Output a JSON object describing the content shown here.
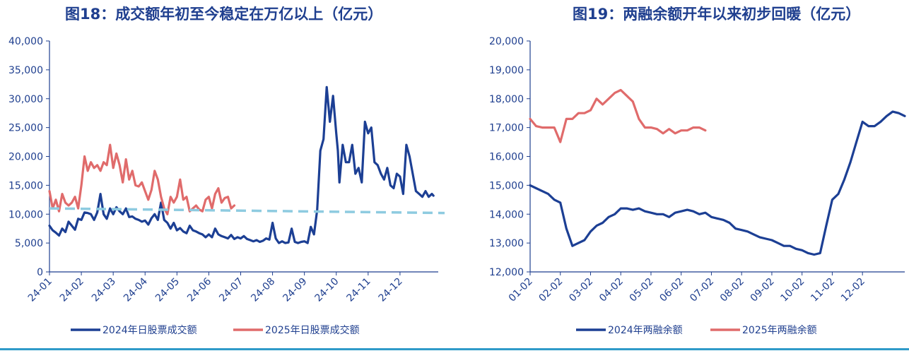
{
  "chart_data": [
    {
      "type": "line",
      "title": "图18：成交额年初至今稳定在万亿以上（亿元）",
      "xlabel": "",
      "ylabel": "",
      "ylim": [
        0,
        40000
      ],
      "yticks": [
        "0",
        "5,000",
        "10,000",
        "15,000",
        "20,000",
        "25,000",
        "30,000",
        "35,000",
        "40,000"
      ],
      "yticks_values": [
        0,
        5000,
        10000,
        15000,
        20000,
        25000,
        30000,
        35000,
        40000
      ],
      "xticks": [
        "24-01",
        "24-02",
        "24-03",
        "24-04",
        "24-05",
        "24-06",
        "24-07",
        "24-08",
        "24-09",
        "24-10",
        "24-11",
        "24-12"
      ],
      "xlim": [
        0,
        12.2
      ],
      "legend_position": "bottom",
      "series": [
        {
          "name": "2024年日股票成交额",
          "color": "#1c3f94",
          "x": [
            0.0,
            0.1,
            0.2,
            0.3,
            0.4,
            0.5,
            0.6,
            0.7,
            0.8,
            0.9,
            1.0,
            1.1,
            1.2,
            1.3,
            1.4,
            1.5,
            1.6,
            1.7,
            1.8,
            1.9,
            2.0,
            2.1,
            2.2,
            2.3,
            2.4,
            2.5,
            2.6,
            2.7,
            2.8,
            2.9,
            3.0,
            3.1,
            3.2,
            3.3,
            3.4,
            3.5,
            3.6,
            3.7,
            3.8,
            3.9,
            4.0,
            4.1,
            4.2,
            4.3,
            4.4,
            4.5,
            4.6,
            4.7,
            4.8,
            4.9,
            5.0,
            5.1,
            5.2,
            5.3,
            5.4,
            5.5,
            5.6,
            5.7,
            5.8,
            5.9,
            6.0,
            6.1,
            6.2,
            6.3,
            6.4,
            6.5,
            6.6,
            6.7,
            6.8,
            6.9,
            7.0,
            7.1,
            7.2,
            7.3,
            7.4,
            7.5,
            7.6,
            7.7,
            7.8,
            7.9,
            8.0,
            8.1,
            8.2,
            8.3,
            8.4,
            8.5,
            8.6,
            8.7,
            8.8,
            8.9,
            9.0,
            9.05,
            9.1,
            9.2,
            9.3,
            9.4,
            9.5,
            9.6,
            9.7,
            9.8,
            9.9,
            10.0,
            10.1,
            10.2,
            10.3,
            10.4,
            10.5,
            10.6,
            10.7,
            10.8,
            10.9,
            11.0,
            11.1,
            11.2,
            11.3,
            11.4,
            11.5,
            11.6,
            11.7,
            11.8,
            11.9,
            12.0,
            12.05
          ],
          "values": [
            8000,
            7200,
            6800,
            6300,
            7500,
            6900,
            8700,
            8000,
            7300,
            9200,
            9000,
            10300,
            10200,
            10000,
            9000,
            10300,
            13500,
            10000,
            9200,
            11000,
            10000,
            11200,
            10500,
            10000,
            11000,
            9500,
            9600,
            9200,
            9000,
            8700,
            8900,
            8200,
            9300,
            10000,
            9000,
            12000,
            9000,
            8500,
            7500,
            8500,
            7200,
            7600,
            7000,
            6700,
            8000,
            7200,
            7000,
            6700,
            6500,
            6000,
            6500,
            6000,
            7500,
            6500,
            6200,
            6000,
            5800,
            6400,
            5700,
            6000,
            5800,
            6200,
            5700,
            5500,
            5300,
            5500,
            5200,
            5400,
            5800,
            5600,
            8500,
            5800,
            5000,
            5300,
            5000,
            5100,
            7500,
            5200,
            5000,
            5200,
            5300,
            5000,
            7800,
            6500,
            10700,
            21000,
            23000,
            32000,
            26000,
            30500,
            24000,
            21000,
            15500,
            22000,
            19000,
            19000,
            22000,
            17000,
            18000,
            15500,
            26000,
            24000,
            25000,
            19000,
            18500,
            17000,
            16000,
            18000,
            15000,
            14500,
            17000,
            16500,
            13500,
            22000,
            20000,
            17000,
            14000,
            13500,
            13000,
            14000,
            13000,
            13500,
            13200
          ],
          "values_note": ""
        },
        {
          "name": "2025年日股票成交额",
          "color": "#e06b6b",
          "x": [
            0.0,
            0.1,
            0.2,
            0.3,
            0.4,
            0.5,
            0.6,
            0.7,
            0.8,
            0.9,
            1.0,
            1.1,
            1.2,
            1.3,
            1.4,
            1.5,
            1.6,
            1.7,
            1.8,
            1.9,
            2.0,
            2.1,
            2.2,
            2.3,
            2.4,
            2.5,
            2.6,
            2.7,
            2.8,
            2.9,
            3.0,
            3.1,
            3.2,
            3.3,
            3.4,
            3.5,
            3.6,
            3.7,
            3.8,
            3.9,
            4.0,
            4.1,
            4.2,
            4.3,
            4.4,
            4.5,
            4.6,
            4.7,
            4.8,
            4.9,
            5.0,
            5.1,
            5.2,
            5.3,
            5.4,
            5.5,
            5.6,
            5.7,
            5.8
          ],
          "values": [
            14000,
            11000,
            12500,
            10500,
            13500,
            12000,
            11500,
            12000,
            13000,
            11000,
            15000,
            20000,
            17500,
            19000,
            18000,
            18500,
            17500,
            19000,
            18500,
            22000,
            18000,
            20500,
            18500,
            15500,
            19500,
            16000,
            17500,
            15000,
            14800,
            15500,
            14000,
            12500,
            14200,
            17500,
            16000,
            13000,
            11000,
            10000,
            13000,
            12000,
            13000,
            16000,
            12500,
            13000,
            10500,
            11000,
            11500,
            10800,
            10500,
            12500,
            13000,
            11000,
            13500,
            14500,
            12000,
            12800,
            13000,
            11000,
            11500
          ]
        },
        {
          "name": "",
          "color": "#8ecbe0",
          "style": "dashed",
          "x": [
            0.0,
            12.4
          ],
          "values": [
            11000,
            10200
          ]
        }
      ]
    },
    {
      "type": "line",
      "title": "图19：两融余额开年以来初步回暖（亿元）",
      "xlabel": "",
      "ylabel": "",
      "ylim": [
        12000,
        20000
      ],
      "yticks": [
        "12,000",
        "13,000",
        "14,000",
        "15,000",
        "16,000",
        "17,000",
        "18,000",
        "19,000",
        "20,000"
      ],
      "yticks_values": [
        12000,
        13000,
        14000,
        15000,
        16000,
        17000,
        18000,
        19000,
        20000
      ],
      "xticks": [
        "01-02",
        "02-02",
        "03-02",
        "04-02",
        "05-02",
        "06-02",
        "07-02",
        "08-02",
        "09-02",
        "10-02",
        "11-02",
        "12-02"
      ],
      "xlim": [
        0,
        12.4
      ],
      "legend_position": "bottom",
      "series": [
        {
          "name": "2024年两融余额",
          "color": "#1c3f94",
          "x": [
            0.0,
            0.2,
            0.4,
            0.6,
            0.8,
            1.0,
            1.2,
            1.4,
            1.6,
            1.8,
            2.0,
            2.2,
            2.4,
            2.6,
            2.8,
            3.0,
            3.2,
            3.4,
            3.6,
            3.8,
            4.0,
            4.2,
            4.4,
            4.6,
            4.8,
            5.0,
            5.2,
            5.4,
            5.6,
            5.8,
            6.0,
            6.2,
            6.4,
            6.6,
            6.8,
            7.0,
            7.2,
            7.4,
            7.6,
            7.8,
            8.0,
            8.2,
            8.4,
            8.6,
            8.8,
            9.0,
            9.2,
            9.4,
            9.6,
            9.8,
            10.0,
            10.2,
            10.4,
            10.6,
            10.8,
            11.0,
            11.2,
            11.4,
            11.6,
            11.8,
            12.0,
            12.2,
            12.4
          ],
          "values": [
            15000,
            14900,
            14800,
            14700,
            14500,
            14400,
            13500,
            12900,
            13000,
            13100,
            13400,
            13600,
            13700,
            13900,
            14000,
            14200,
            14200,
            14150,
            14200,
            14100,
            14050,
            14000,
            14000,
            13900,
            14050,
            14100,
            14150,
            14100,
            14000,
            14050,
            13900,
            13850,
            13800,
            13700,
            13500,
            13450,
            13400,
            13300,
            13200,
            13150,
            13100,
            13000,
            12900,
            12900,
            12800,
            12750,
            12650,
            12600,
            12650,
            13600,
            14500,
            14700,
            15200,
            15800,
            16500,
            17200,
            17050,
            17050,
            17200,
            17400,
            17550,
            17500,
            17400
          ]
        },
        {
          "name": "2025年两融余额",
          "color": "#e06b6b",
          "x": [
            0.0,
            0.2,
            0.4,
            0.6,
            0.8,
            1.0,
            1.2,
            1.4,
            1.6,
            1.8,
            2.0,
            2.2,
            2.4,
            2.6,
            2.8,
            3.0,
            3.2,
            3.4,
            3.6,
            3.8,
            4.0,
            4.2,
            4.4,
            4.6,
            4.8,
            5.0,
            5.2,
            5.4,
            5.6,
            5.8
          ],
          "values": [
            17300,
            17050,
            17000,
            17000,
            17000,
            16500,
            17300,
            17300,
            17500,
            17500,
            17600,
            18000,
            17800,
            18000,
            18200,
            18300,
            18100,
            17900,
            17300,
            17000,
            17000,
            16950,
            16800,
            16950,
            16800,
            16900,
            16900,
            17000,
            17000,
            16900
          ]
        }
      ]
    }
  ]
}
